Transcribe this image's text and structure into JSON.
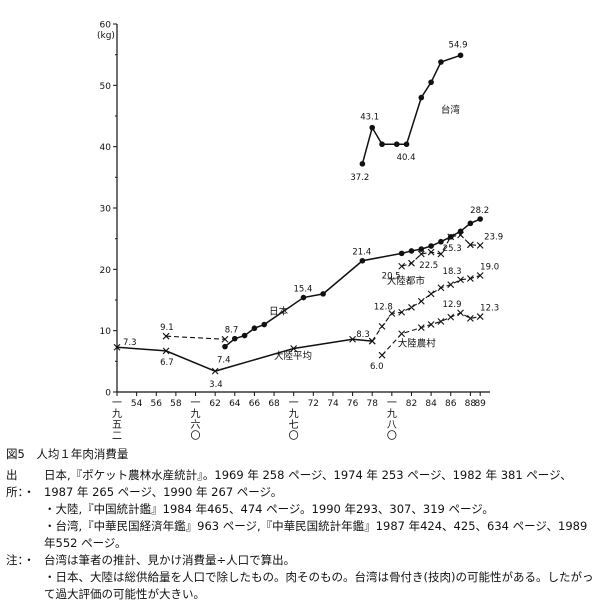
{
  "chart_data": {
    "type": "line",
    "y_unit": "(kg)",
    "y_ticks": [
      0,
      10,
      20,
      30,
      40,
      50,
      60
    ],
    "ylim": [
      0,
      60
    ],
    "xlim": [
      1952,
      1990
    ],
    "x_ticks": [
      1952,
      1954,
      1956,
      1958,
      1960,
      1962,
      1964,
      1966,
      1968,
      1970,
      1972,
      1974,
      1976,
      1978,
      1980,
      1982,
      1984,
      1986,
      1988,
      1989
    ],
    "x_tick_labels": [
      "",
      "54",
      "56",
      "58",
      "",
      "62",
      "64",
      "66",
      "68",
      "",
      "72",
      "74",
      "76",
      "78",
      "",
      "82",
      "84",
      "86",
      "88",
      "89"
    ],
    "era_labels": [
      {
        "x": 1952,
        "text": "一九五二"
      },
      {
        "x": 1960,
        "text": "一九六〇"
      },
      {
        "x": 1970,
        "text": "一九七〇"
      },
      {
        "x": 1980,
        "text": "一九八〇"
      }
    ],
    "series": [
      {
        "name": "日本",
        "style": "dot-solid",
        "points": [
          [
            1963,
            7.4
          ],
          [
            1964,
            8.7
          ],
          [
            1965,
            9.2
          ],
          [
            1966,
            10.4
          ],
          [
            1967,
            11.0
          ],
          [
            1971,
            15.4
          ],
          [
            1973,
            16.0
          ],
          [
            1977,
            21.4
          ],
          [
            1981,
            22.6
          ],
          [
            1982,
            23.0
          ],
          [
            1983,
            23.3
          ],
          [
            1984,
            23.8
          ],
          [
            1985,
            24.5
          ],
          [
            1986,
            25.3
          ],
          [
            1987,
            26.2
          ],
          [
            1988,
            27.5
          ],
          [
            1989,
            28.2
          ]
        ]
      },
      {
        "name": "台湾",
        "style": "dot-solid",
        "points": [
          [
            1977,
            37.2
          ],
          [
            1978,
            43.1
          ],
          [
            1979,
            40.4
          ],
          [
            1980.5,
            40.4
          ],
          [
            1981.5,
            40.4
          ],
          [
            1983,
            48.0
          ],
          [
            1984,
            50.5
          ],
          [
            1985,
            53.8
          ],
          [
            1987,
            54.9
          ]
        ]
      },
      {
        "name": "大陸平均",
        "style": "cross-solid",
        "points": [
          [
            1952,
            7.3
          ],
          [
            1957,
            6.7
          ],
          [
            1962,
            3.4
          ],
          [
            1970,
            7.1
          ],
          [
            1976,
            8.6
          ],
          [
            1978,
            8.3
          ]
        ]
      },
      {
        "name": "",
        "style": "cross-dashed",
        "points": [
          [
            1957,
            9.1
          ],
          [
            1963,
            8.6
          ]
        ]
      },
      {
        "name": "大陸都市",
        "style": "cross-dashed",
        "points": [
          [
            1981,
            20.5
          ],
          [
            1982,
            21.0
          ],
          [
            1983,
            22.5
          ],
          [
            1984,
            22.8
          ],
          [
            1985,
            22.5
          ],
          [
            1986,
            25.3
          ],
          [
            1987,
            25.6
          ],
          [
            1988,
            24.0
          ],
          [
            1989,
            23.9
          ]
        ]
      },
      {
        "name": "",
        "style": "cross-dashed",
        "points": [
          [
            1978,
            8.3
          ],
          [
            1979,
            10.7
          ],
          [
            1980,
            12.8
          ],
          [
            1981,
            13.0
          ],
          [
            1982,
            13.8
          ],
          [
            1983,
            14.8
          ],
          [
            1984,
            16.0
          ],
          [
            1985,
            17.0
          ],
          [
            1986,
            17.5
          ],
          [
            1987,
            18.3
          ],
          [
            1988,
            18.5
          ],
          [
            1989,
            19.0
          ]
        ]
      },
      {
        "name": "大陸農村",
        "style": "cross-dashed",
        "points": [
          [
            1979,
            6.0
          ],
          [
            1981,
            9.5
          ],
          [
            1983,
            10.5
          ],
          [
            1984,
            11.0
          ],
          [
            1985,
            11.5
          ],
          [
            1986,
            12.2
          ],
          [
            1987,
            12.9
          ],
          [
            1988,
            12.0
          ],
          [
            1989,
            12.3
          ]
        ]
      }
    ],
    "data_labels": [
      {
        "x": 1952,
        "y": 7.3,
        "text": "7.3",
        "dx": 6,
        "dy": -2
      },
      {
        "x": 1957,
        "y": 6.7,
        "text": "6.7",
        "dx": -6,
        "dy": 14
      },
      {
        "x": 1957,
        "y": 9.1,
        "text": "9.1",
        "dx": -6,
        "dy": -6
      },
      {
        "x": 1962,
        "y": 3.4,
        "text": "3.4",
        "dx": -6,
        "dy": 16
      },
      {
        "x": 1963,
        "y": 7.4,
        "text": "7.4",
        "dx": -8,
        "dy": 16
      },
      {
        "x": 1964,
        "y": 8.7,
        "text": "8.7",
        "dx": -10,
        "dy": -6
      },
      {
        "x": 1971,
        "y": 15.4,
        "text": "15.4",
        "dx": -10,
        "dy": -6
      },
      {
        "x": 1977,
        "y": 21.4,
        "text": "21.4",
        "dx": -10,
        "dy": -6
      },
      {
        "x": 1978,
        "y": 8.3,
        "text": "8.3",
        "dx": -16,
        "dy": -4
      },
      {
        "x": 1980,
        "y": 12.8,
        "text": "12.8",
        "dx": -18,
        "dy": -4
      },
      {
        "x": 1979,
        "y": 6.0,
        "text": "6.0",
        "dx": -12,
        "dy": 14
      },
      {
        "x": 1981,
        "y": 20.5,
        "text": "20.5",
        "dx": -20,
        "dy": 12
      },
      {
        "x": 1983,
        "y": 22.5,
        "text": "22.5",
        "dx": -2,
        "dy": 14
      },
      {
        "x": 1986,
        "y": 25.3,
        "text": "25.3",
        "dx": -8,
        "dy": 14
      },
      {
        "x": 1987,
        "y": 18.3,
        "text": "18.3",
        "dx": -18,
        "dy": -6
      },
      {
        "x": 1989,
        "y": 19.0,
        "text": "19.0",
        "dx": 0,
        "dy": -6
      },
      {
        "x": 1987,
        "y": 12.9,
        "text": "12.9",
        "dx": -18,
        "dy": -6
      },
      {
        "x": 1989,
        "y": 12.3,
        "text": "12.3",
        "dx": 0,
        "dy": -6
      },
      {
        "x": 1989,
        "y": 28.2,
        "text": "28.2",
        "dx": -10,
        "dy": -6
      },
      {
        "x": 1989,
        "y": 23.9,
        "text": "23.9",
        "dx": 4,
        "dy": -6
      },
      {
        "x": 1977,
        "y": 37.2,
        "text": "37.2",
        "dx": -12,
        "dy": 16
      },
      {
        "x": 1978,
        "y": 43.1,
        "text": "43.1",
        "dx": -12,
        "dy": -8
      },
      {
        "x": 1981.5,
        "y": 40.4,
        "text": "40.4",
        "dx": -10,
        "dy": 16
      },
      {
        "x": 1987,
        "y": 54.9,
        "text": "54.9",
        "dx": -12,
        "dy": -8
      }
    ],
    "series_labels": [
      {
        "x": 1985,
        "y": 45.5,
        "text": "台湾"
      },
      {
        "x": 1967.5,
        "y": 12.6,
        "text": "日本"
      },
      {
        "x": 1979.5,
        "y": 17.6,
        "text": "大陸都市"
      },
      {
        "x": 1980.6,
        "y": 7.4,
        "text": "大陸農村"
      },
      {
        "x": 1968,
        "y": 5.4,
        "text": "大陸平均"
      }
    ]
  },
  "caption": {
    "figure_title": "図5　人均１年肉消費量",
    "source_label": "出所：・",
    "sources": [
      "日本,『ポケット農林水産統計』。1969 年 258 ページ、1974 年 253 ページ、1982 年 381 ページ、1987 年 265 ページ、1990 年 267 ページ。",
      "大陸,『中国統計鑑』1984 年465、474 ページ。1990 年293、307、319 ページ。",
      "台湾,『中華民国経済年鑑』963 ページ,『中華民国統計年鑑』1987 年424、425、634 ページ、1989 年552 ページ。"
    ],
    "source_bullet": "・",
    "notes_label": "注：・",
    "notes": [
      "台湾は筆者の推計、見かけ消費量÷人口で算出。",
      "日本、大陸は総供給量を人口で除したもの。肉そのもの。台湾は骨付き(技肉)の可能性がある。したがって過大評価の可能性が大きい。"
    ]
  }
}
